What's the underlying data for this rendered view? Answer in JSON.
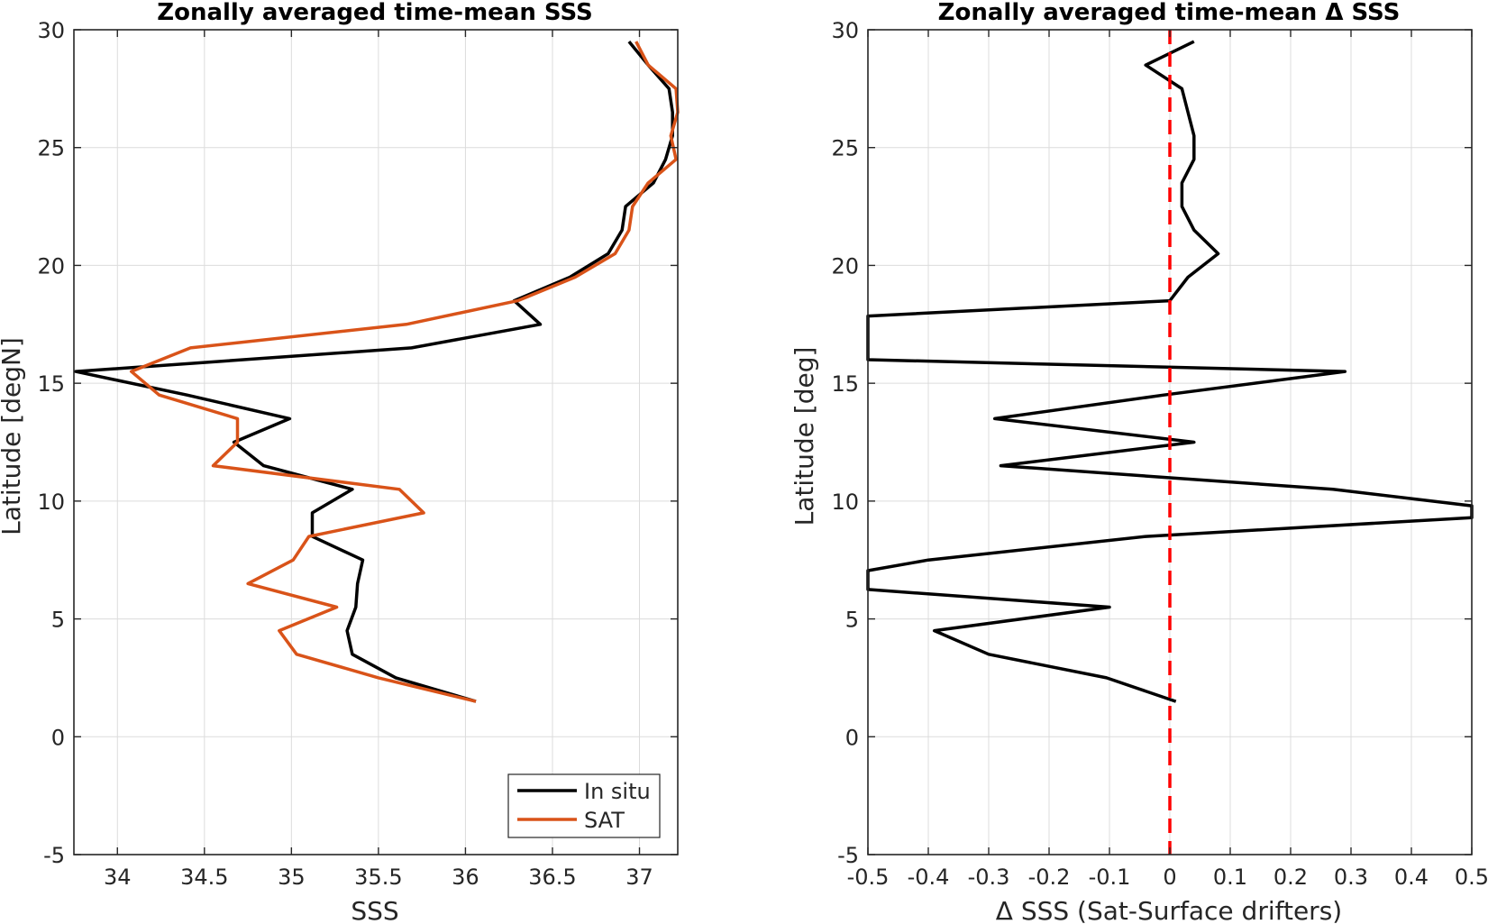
{
  "chart_data": [
    {
      "type": "line",
      "title": "Zonally averaged time-mean SSS",
      "xlabel": "SSS",
      "ylabel": "Latitude [degN]",
      "xlim": [
        33.75,
        37.22
      ],
      "ylim": [
        -5,
        30
      ],
      "xticks": [
        "34",
        "34.5",
        "35",
        "35.5",
        "36",
        "36.5",
        "37"
      ],
      "yticks": [
        "-5",
        "0",
        "5",
        "10",
        "15",
        "20",
        "25",
        "30"
      ],
      "grid": true,
      "legend": "bottom-right",
      "series": [
        {
          "name": "In situ",
          "color": "#000000",
          "points": [
            [
              36.06,
              1.5
            ],
            [
              35.6,
              2.5
            ],
            [
              35.35,
              3.5
            ],
            [
              35.32,
              4.5
            ],
            [
              35.37,
              5.5
            ],
            [
              35.38,
              6.5
            ],
            [
              35.41,
              7.5
            ],
            [
              35.12,
              8.5
            ],
            [
              35.12,
              9.5
            ],
            [
              35.35,
              10.5
            ],
            [
              34.84,
              11.5
            ],
            [
              34.67,
              12.5
            ],
            [
              34.99,
              13.5
            ],
            [
              34.4,
              14.5
            ],
            [
              33.76,
              15.5
            ],
            [
              35.69,
              16.5
            ],
            [
              36.43,
              17.5
            ],
            [
              36.28,
              18.5
            ],
            [
              36.6,
              19.5
            ],
            [
              36.82,
              20.5
            ],
            [
              36.9,
              21.5
            ],
            [
              36.92,
              22.5
            ],
            [
              37.08,
              23.5
            ],
            [
              37.15,
              24.5
            ],
            [
              37.19,
              25.5
            ],
            [
              37.19,
              26.5
            ],
            [
              37.17,
              27.5
            ],
            [
              37.05,
              28.5
            ],
            [
              36.94,
              29.5
            ]
          ]
        },
        {
          "name": "SAT",
          "color": "#d95319",
          "points": [
            [
              36.06,
              1.5
            ],
            [
              35.5,
              2.5
            ],
            [
              35.03,
              3.5
            ],
            [
              34.93,
              4.5
            ],
            [
              35.26,
              5.5
            ],
            [
              34.75,
              6.5
            ],
            [
              35.01,
              7.5
            ],
            [
              35.1,
              8.5
            ],
            [
              35.76,
              9.5
            ],
            [
              35.62,
              10.5
            ],
            [
              34.55,
              11.5
            ],
            [
              34.69,
              12.5
            ],
            [
              34.69,
              13.5
            ],
            [
              34.24,
              14.5
            ],
            [
              34.08,
              15.5
            ],
            [
              34.42,
              16.5
            ],
            [
              35.66,
              17.5
            ],
            [
              36.3,
              18.5
            ],
            [
              36.63,
              19.5
            ],
            [
              36.86,
              20.5
            ],
            [
              36.94,
              21.5
            ],
            [
              36.96,
              22.5
            ],
            [
              37.05,
              23.5
            ],
            [
              37.21,
              24.5
            ],
            [
              37.18,
              25.5
            ],
            [
              37.22,
              26.5
            ],
            [
              37.21,
              27.5
            ],
            [
              37.05,
              28.5
            ],
            [
              36.98,
              29.5
            ]
          ]
        }
      ]
    },
    {
      "type": "line",
      "title": "Zonally averaged time-mean Δ SSS",
      "xlabel": "Δ SSS (Sat-Surface drifters)",
      "ylabel": "Latitude [deg]",
      "xlim": [
        -0.5,
        0.5
      ],
      "ylim": [
        -5,
        30
      ],
      "xticks": [
        "-0.5",
        "-0.4",
        "-0.3",
        "-0.2",
        "-0.1",
        "0",
        "0.1",
        "0.2",
        "0.3",
        "0.4",
        "0.5"
      ],
      "yticks": [
        "-5",
        "0",
        "5",
        "10",
        "15",
        "20",
        "25",
        "30"
      ],
      "grid": true,
      "zero_line": {
        "x": 0,
        "color": "#ff0000",
        "style": "dashed"
      },
      "series": [
        {
          "color": "#000000",
          "points": [
            [
              0.01,
              1.5
            ],
            [
              -0.105,
              2.5
            ],
            [
              -0.3,
              3.5
            ],
            [
              -0.39,
              4.5
            ],
            [
              -0.1,
              5.5
            ],
            [
              -0.5,
              6.25
            ],
            [
              -0.5,
              7.05
            ],
            [
              -0.4,
              7.5
            ],
            [
              -0.04,
              8.5
            ],
            [
              0.5,
              9.3
            ],
            [
              0.5,
              9.8
            ],
            [
              0.27,
              10.5
            ],
            [
              -0.28,
              11.5
            ],
            [
              0.04,
              12.5
            ],
            [
              -0.29,
              13.5
            ],
            [
              -0.01,
              14.5
            ],
            [
              0.29,
              15.5
            ],
            [
              -0.5,
              16.0
            ],
            [
              -0.5,
              17.85
            ],
            [
              0.0,
              18.5
            ],
            [
              0.03,
              19.5
            ],
            [
              0.08,
              20.5
            ],
            [
              0.04,
              21.5
            ],
            [
              0.02,
              22.5
            ],
            [
              0.02,
              23.5
            ],
            [
              0.04,
              24.5
            ],
            [
              0.04,
              25.5
            ],
            [
              0.03,
              26.5
            ],
            [
              0.02,
              27.5
            ],
            [
              -0.04,
              28.5
            ],
            [
              0.04,
              29.5
            ]
          ]
        }
      ]
    }
  ]
}
